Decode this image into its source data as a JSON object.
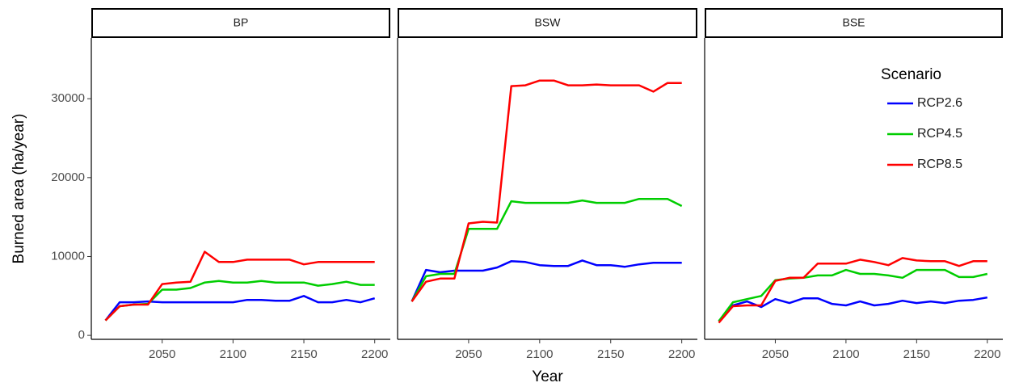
{
  "chart_data": [
    {
      "type": "line",
      "title": "BP",
      "ylabel": "Burned area (ha/year)",
      "x": [
        2010,
        2020,
        2030,
        2040,
        2050,
        2060,
        2070,
        2080,
        2090,
        2100,
        2110,
        2120,
        2130,
        2140,
        2150,
        2160,
        2170,
        2180,
        2190,
        2200
      ],
      "xlim": [
        2000,
        2211
      ],
      "xticks": [
        2050,
        2100,
        2150,
        2200
      ],
      "ylim": [
        -500,
        37700
      ],
      "yticks": [
        0,
        10000,
        20000,
        30000
      ],
      "series": [
        {
          "name": "RCP2.6",
          "color": "#0000ff",
          "values": [
            1900,
            4200,
            4200,
            4300,
            4200,
            4200,
            4200,
            4200,
            4200,
            4200,
            4500,
            4500,
            4400,
            4400,
            5000,
            4200,
            4200,
            4500,
            4200,
            4700
          ]
        },
        {
          "name": "RCP4.5",
          "color": "#00cd00",
          "values": [
            1900,
            3700,
            3900,
            4000,
            5800,
            5800,
            6000,
            6700,
            6900,
            6700,
            6700,
            6900,
            6700,
            6700,
            6700,
            6300,
            6500,
            6800,
            6400,
            6400
          ]
        },
        {
          "name": "RCP8.5",
          "color": "#ff0000",
          "values": [
            1900,
            3700,
            3900,
            3900,
            6500,
            6700,
            6800,
            10600,
            9300,
            9300,
            9600,
            9600,
            9600,
            9600,
            9000,
            9300,
            9300,
            9300,
            9300,
            9300
          ]
        }
      ]
    },
    {
      "type": "line",
      "title": "BSW",
      "xlabel": "Year",
      "x": [
        2010,
        2020,
        2030,
        2040,
        2050,
        2060,
        2070,
        2080,
        2090,
        2100,
        2110,
        2120,
        2130,
        2140,
        2150,
        2160,
        2170,
        2180,
        2190,
        2200
      ],
      "xlim": [
        2000,
        2211
      ],
      "xticks": [
        2050,
        2100,
        2150,
        2200
      ],
      "ylim": [
        -500,
        37700
      ],
      "series": [
        {
          "name": "RCP2.6",
          "color": "#0000ff",
          "values": [
            4300,
            8300,
            8000,
            8200,
            8200,
            8200,
            8600,
            9400,
            9300,
            8900,
            8800,
            8800,
            9500,
            8900,
            8900,
            8700,
            9000,
            9200,
            9200,
            9200
          ]
        },
        {
          "name": "RCP4.5",
          "color": "#00cd00",
          "values": [
            4300,
            7500,
            7800,
            7800,
            13500,
            13500,
            13500,
            17000,
            16800,
            16800,
            16800,
            16800,
            17100,
            16800,
            16800,
            16800,
            17300,
            17300,
            17300,
            16400
          ]
        },
        {
          "name": "RCP8.5",
          "color": "#ff0000",
          "values": [
            4300,
            6800,
            7200,
            7200,
            14200,
            14400,
            14300,
            31600,
            31700,
            32300,
            32300,
            31700,
            31700,
            31800,
            31700,
            31700,
            31700,
            30900,
            32000,
            32000
          ]
        }
      ]
    },
    {
      "type": "line",
      "title": "BSE",
      "legend_title": "Scenario",
      "x": [
        2010,
        2020,
        2030,
        2040,
        2050,
        2060,
        2070,
        2080,
        2090,
        2100,
        2110,
        2120,
        2130,
        2140,
        2150,
        2160,
        2170,
        2180,
        2190,
        2200
      ],
      "xlim": [
        2000,
        2211
      ],
      "xticks": [
        2050,
        2100,
        2150,
        2200
      ],
      "ylim": [
        -500,
        37700
      ],
      "series": [
        {
          "name": "RCP2.6",
          "color": "#0000ff",
          "values": [
            1800,
            3800,
            4300,
            3600,
            4600,
            4100,
            4700,
            4700,
            4000,
            3800,
            4300,
            3800,
            4000,
            4400,
            4100,
            4300,
            4100,
            4400,
            4500,
            4800
          ]
        },
        {
          "name": "RCP4.5",
          "color": "#00cd00",
          "values": [
            1800,
            4200,
            4600,
            5000,
            7000,
            7200,
            7300,
            7600,
            7600,
            8300,
            7800,
            7800,
            7600,
            7300,
            8300,
            8300,
            8300,
            7400,
            7400,
            7800
          ]
        },
        {
          "name": "RCP8.5",
          "color": "#ff0000",
          "values": [
            1600,
            3700,
            3800,
            3800,
            6900,
            7300,
            7300,
            9100,
            9100,
            9100,
            9600,
            9300,
            8900,
            9800,
            9500,
            9400,
            9400,
            8800,
            9400,
            9400
          ]
        }
      ]
    }
  ]
}
